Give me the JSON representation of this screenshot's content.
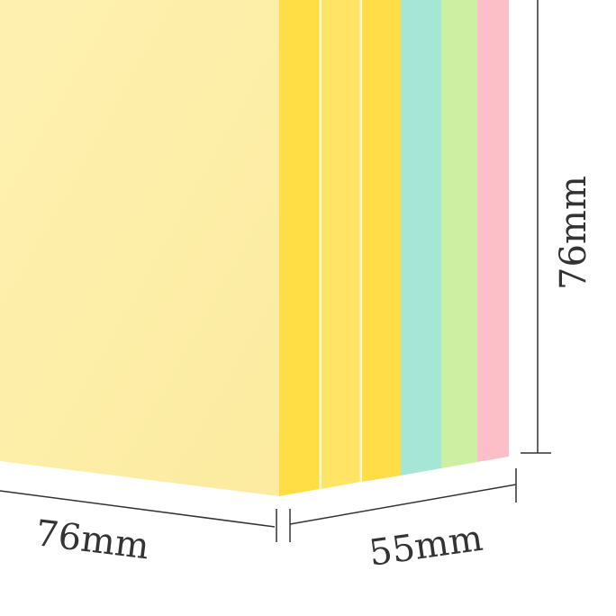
{
  "labels": {
    "width": "76mm",
    "depth": "55mm",
    "height": "76mm"
  },
  "colors": {
    "front_face": "#FDEFAA",
    "strip_yellow_1": "#FFDE45",
    "strip_yellow_2": "#FFE466",
    "strip_yellow_3": "#FFDD48",
    "strip_cyan": "#A6E6D6",
    "strip_green": "#CDEFA2",
    "strip_pink": "#FCBFC7",
    "dimension_line": "#333333"
  }
}
